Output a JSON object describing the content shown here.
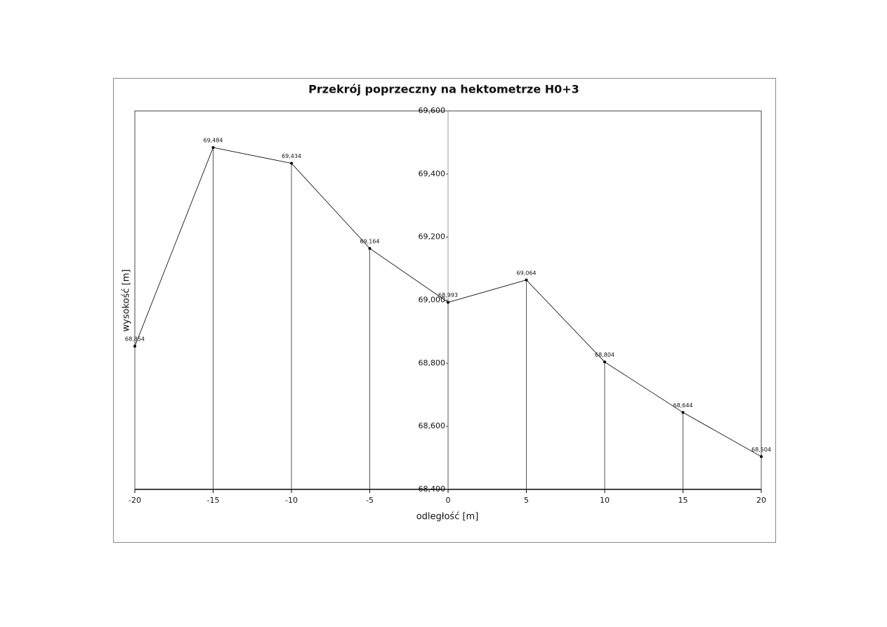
{
  "chart_data": {
    "type": "line",
    "title": "Przekrój poprzeczny na hektometrze H0+3",
    "x_label": "odległość [m]",
    "y_label": "wysokość [m]",
    "x": [
      -20,
      -15,
      -10,
      -5,
      0,
      5,
      10,
      15,
      20
    ],
    "series": [
      {
        "color": "#000000",
        "values": [
          68.854,
          69.484,
          69.434,
          69.164,
          68.993,
          69.064,
          68.804,
          68.644,
          68.504
        ],
        "value_labels": [
          "68,854",
          "69,484",
          "69,434",
          "69,164",
          "68,993",
          "69,064",
          "68,804",
          "68,644",
          "68,504"
        ]
      }
    ],
    "xlim": [
      -20,
      20
    ],
    "xticks": [
      -20,
      -15,
      -10,
      -5,
      0,
      5,
      10,
      15,
      20
    ],
    "ylim": [
      68.4,
      69.6
    ],
    "yticks": [
      {
        "value": 68.4,
        "label": "68,400"
      },
      {
        "value": 68.6,
        "label": "68,600"
      },
      {
        "value": 68.8,
        "label": "68,800"
      },
      {
        "value": 69.0,
        "label": "69,000"
      },
      {
        "value": 69.2,
        "label": "69,200"
      },
      {
        "value": 69.4,
        "label": "69,400"
      },
      {
        "value": 69.6,
        "label": "69,600"
      }
    ],
    "drop_lines": true
  }
}
